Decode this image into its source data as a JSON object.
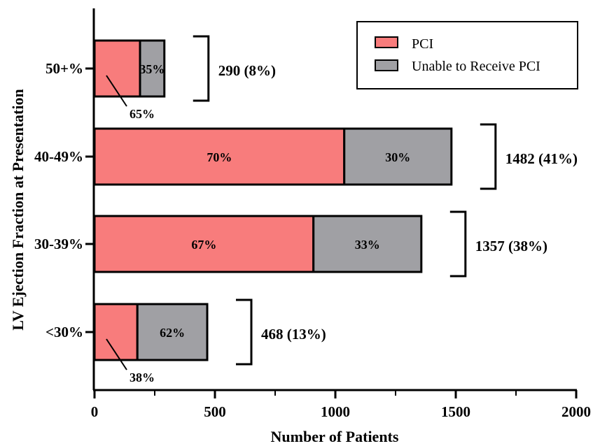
{
  "chart_data": {
    "type": "bar",
    "orientation": "horizontal",
    "stacked": true,
    "categories": [
      "<30%",
      "30-39%",
      "40-49%",
      "50+%"
    ],
    "series": [
      {
        "name": "PCI",
        "color": "#f87c7c",
        "values": [
          178,
          909,
          1037,
          189
        ],
        "labels": [
          "38%",
          "67%",
          "70%",
          "65%"
        ]
      },
      {
        "name": "Unable to Receive PCI",
        "color": "#a0a0a4",
        "values": [
          290,
          448,
          445,
          101
        ],
        "labels": [
          "62%",
          "33%",
          "30%",
          "35%"
        ]
      }
    ],
    "totals": [
      "468 (13%)",
      "1357 (38%)",
      "1482 (41%)",
      "290 (8%)"
    ],
    "xlabel": "Number of Patients",
    "ylabel": "LV Ejection Fraction at  Presentation",
    "xlim": [
      0,
      2000
    ],
    "xticks": [
      "0",
      "500",
      "1000",
      "1500",
      "2000"
    ],
    "grid": false,
    "legend": "top-right"
  }
}
